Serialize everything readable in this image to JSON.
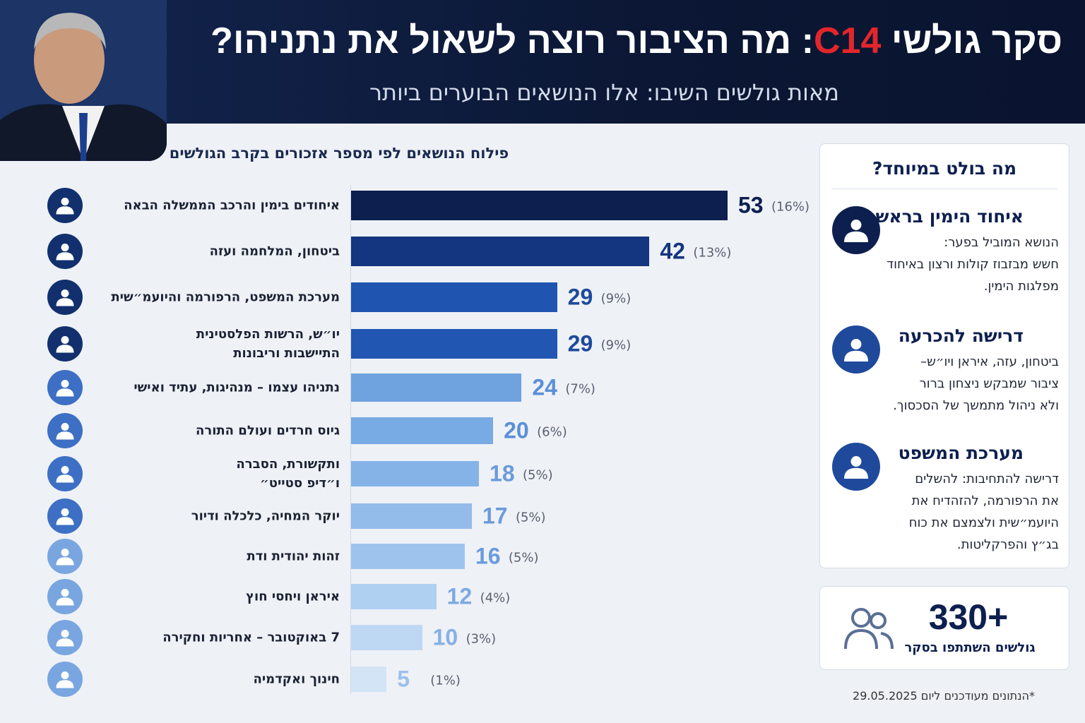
{
  "header": {
    "title_lead": "סקר גולשי ",
    "title_highlight": "C14",
    "title_rest": ": מה הציבור רוצה לשאול את נתניהו?",
    "subtitle": "מאות גולשים השיבו: אלו הנושאים הבוערים ביותר"
  },
  "chart_data": {
    "type": "hbar",
    "title": "פילוח הנושאים לפי מספר אזכורים בקרב הגולשים",
    "categories": [
      "איחודים בימין והרכב הממשלה הבאה",
      "ביטחון, המלחמה ועזה",
      "מערכת המשפט, הרפורמה והיועמ״שית",
      "יו״ש, הרשות הפלסטינית\nהתיישבות וריבונות",
      "נתניהו עצמו – מנהיגות, עתיד ואישי",
      "גיוס חרדים ועולם התורה",
      "ותקשורת, הסברה\nו״דיפ סטייט״",
      "יוקר המחיה, כלכלה ודיור",
      "זהות יהודית ודת",
      "איראן ויחסי חוץ",
      "7 באוקטובר – אחריות וחקירה",
      "חינוך ואקדמיה"
    ],
    "values": [
      53,
      42,
      29,
      29,
      24,
      20,
      18,
      17,
      16,
      12,
      10,
      5
    ],
    "share_labels": [
      "(16%)",
      "(13%)",
      "(9%)",
      "(9%)",
      "(7%)",
      "(6%)",
      "(5%)",
      "(5%)",
      "(5%)",
      "(4%)",
      "(3%)",
      "(1%)"
    ],
    "colors": [
      "#0d1f4f",
      "#14357f",
      "#1f55b0",
      "#2157b3",
      "#6fa3e0",
      "#78aae4",
      "#85b3e8",
      "#93bceb",
      "#9ec4ee",
      "#b0d0f2",
      "#bed8f4",
      "#d3e4f7"
    ],
    "label_colors": [
      "#0d1f4f",
      "#14357f",
      "#1f4a9c",
      "#1f4a9c",
      "#5b8fd8",
      "#5b8fd8",
      "#6a9bdc",
      "#6a9bdc",
      "#6a9bdc",
      "#7eaae3",
      "#86b0e6",
      "#9cc0ec"
    ]
  },
  "highlights": {
    "title": "מה בולט במיוחד?",
    "items": [
      {
        "title": "איחוד הימין בראש",
        "body": "הנושא המוביל בפער:\nחשש מבזבוז קולות ורצון באיחוד\nמפלגות הימין."
      },
      {
        "title": "דרישה להכרעה",
        "body": "ביטחון, עזה, איראן ויו״ש–\nציבור שמבקש ניצחון ברור\nולא ניהול מתמשך של הסכסוך."
      },
      {
        "title": "מערכת המשפט",
        "body": "דרישה להתחיבות: להשלים\nאת הרפורמה, להזהדיח את\nהיועמ״שית ולצמצם את כוח\nבג״ץ והפרקליטות."
      }
    ]
  },
  "stats": {
    "value": "330+",
    "caption": "גולשים השתתפו בסקר"
  },
  "footnote": "*הנתונים מעודכנים ליום 29.05.2025"
}
